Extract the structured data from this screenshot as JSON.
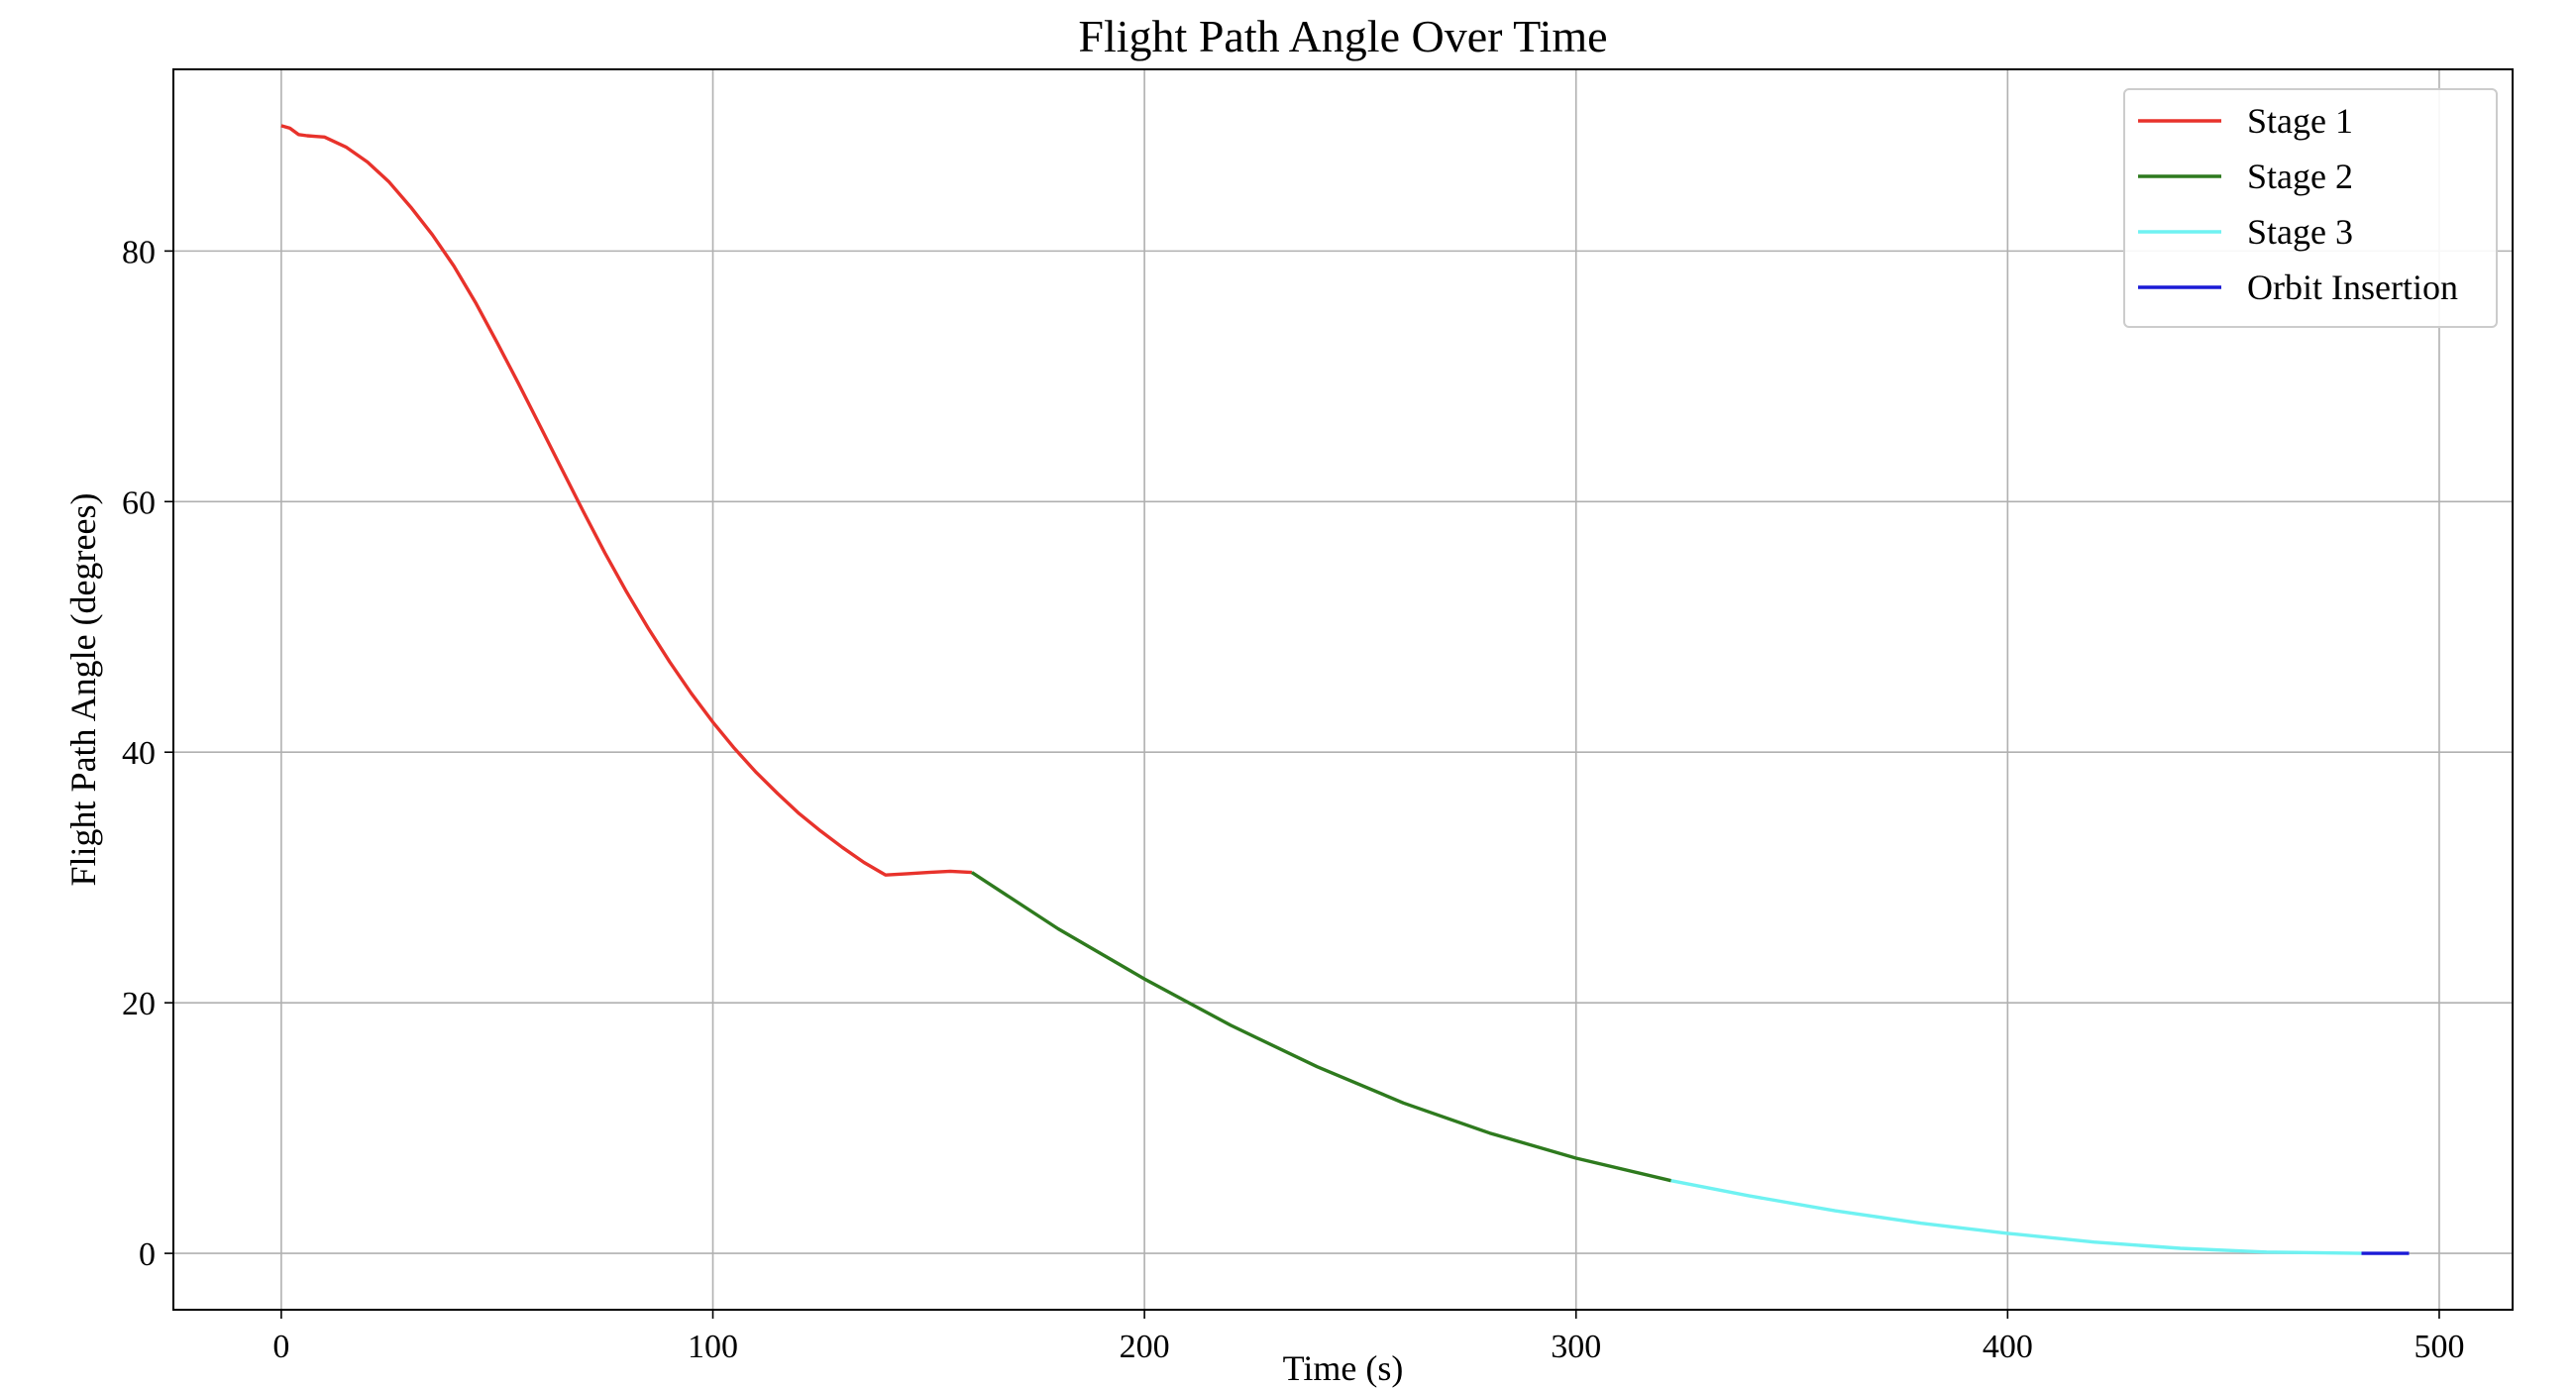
{
  "chart_data": {
    "type": "line",
    "title": "Flight Path Angle Over Time",
    "xlabel": "Time (s)",
    "ylabel": "Flight Path Angle (degrees)",
    "xlim": [
      -25,
      517
    ],
    "ylim": [
      -4.5,
      94.5
    ],
    "xticks": [
      0,
      100,
      200,
      300,
      400,
      500
    ],
    "yticks": [
      0,
      20,
      40,
      60,
      80
    ],
    "grid": true,
    "legend_position": "top-right",
    "series": [
      {
        "name": "Stage 1",
        "color": "#e8322b",
        "x": [
          0,
          2,
          4,
          6,
          8,
          10,
          15,
          20,
          25,
          30,
          35,
          40,
          45,
          50,
          55,
          60,
          65,
          70,
          75,
          80,
          85,
          90,
          95,
          100,
          105,
          110,
          115,
          120,
          125,
          130,
          135,
          140,
          145,
          150,
          155,
          160
        ],
        "y": [
          90.0,
          89.8,
          89.3,
          89.2,
          89.15,
          89.1,
          88.3,
          87.1,
          85.5,
          83.5,
          81.3,
          78.8,
          75.9,
          72.7,
          69.4,
          66.0,
          62.6,
          59.2,
          55.9,
          52.8,
          49.9,
          47.2,
          44.7,
          42.4,
          40.3,
          38.4,
          36.7,
          35.1,
          33.7,
          32.4,
          31.2,
          30.2,
          30.3,
          30.4,
          30.5,
          30.4
        ]
      },
      {
        "name": "Stage 2",
        "color": "#2e7a1e",
        "x": [
          160,
          180,
          200,
          220,
          240,
          260,
          280,
          300,
          322
        ],
        "y": [
          30.4,
          25.9,
          21.9,
          18.2,
          14.9,
          12.0,
          9.6,
          7.6,
          5.8
        ]
      },
      {
        "name": "Stage 3",
        "color": "#6ff2f2",
        "x": [
          322,
          340,
          360,
          380,
          400,
          420,
          440,
          460,
          482
        ],
        "y": [
          5.8,
          4.6,
          3.4,
          2.4,
          1.6,
          0.9,
          0.4,
          0.1,
          0.0
        ]
      },
      {
        "name": "Orbit Insertion",
        "color": "#1a1ad6",
        "x": [
          482,
          493
        ],
        "y": [
          0.0,
          0.0
        ]
      }
    ]
  }
}
